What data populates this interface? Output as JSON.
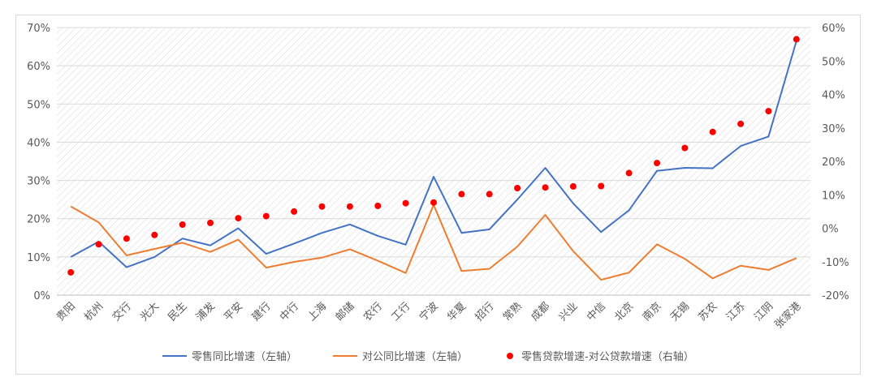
{
  "chart_data": {
    "type": "line",
    "categories": [
      "贵阳",
      "杭州",
      "交行",
      "光大",
      "民生",
      "浦发",
      "平安",
      "建行",
      "中行",
      "上海",
      "邮储",
      "农行",
      "工行",
      "宁波",
      "华夏",
      "招行",
      "常熟",
      "成都",
      "兴业",
      "中信",
      "北京",
      "南京",
      "无锡",
      "苏农",
      "江苏",
      "江阴",
      "张家港"
    ],
    "series": [
      {
        "name": "零售同比增速（左轴）",
        "axis": "left",
        "kind": "line",
        "color": "#4472c4",
        "values": [
          10.0,
          14.0,
          7.3,
          10.0,
          14.8,
          13.0,
          17.5,
          10.8,
          13.5,
          16.3,
          18.5,
          15.5,
          13.2,
          31.0,
          16.3,
          17.2,
          25.0,
          33.3,
          24.0,
          16.5,
          22.2,
          32.5,
          33.3,
          33.2,
          39.0,
          41.5,
          66.5
        ]
      },
      {
        "name": "对公同比增速（左轴）",
        "axis": "left",
        "kind": "line",
        "color": "#ed7d31",
        "values": [
          23.2,
          19.0,
          10.4,
          12.1,
          13.7,
          11.3,
          14.5,
          7.2,
          8.7,
          9.8,
          12.0,
          9.0,
          5.8,
          23.6,
          6.3,
          6.9,
          12.7,
          21.0,
          11.5,
          4.0,
          5.9,
          13.3,
          9.5,
          4.4,
          7.7,
          6.6,
          9.7
        ]
      },
      {
        "name": "零售贷款增速-对公贷款增速（右轴）",
        "axis": "right",
        "kind": "scatter",
        "color": "#ff0000",
        "values": [
          -13.2,
          -4.8,
          -3.1,
          -2.0,
          1.1,
          1.6,
          3.0,
          3.6,
          5.0,
          6.5,
          6.5,
          6.7,
          7.5,
          7.7,
          10.2,
          10.2,
          12.0,
          12.2,
          12.5,
          12.6,
          16.5,
          19.5,
          24.0,
          28.8,
          31.2,
          35.0,
          56.5
        ]
      }
    ],
    "left_axis": {
      "min": 0,
      "max": 70,
      "step": 10,
      "format": "percent"
    },
    "right_axis": {
      "min": -20,
      "max": 60,
      "step": 10,
      "format": "percent"
    },
    "left_tick_labels": [
      "0%",
      "10%",
      "20%",
      "30%",
      "40%",
      "50%",
      "60%",
      "70%"
    ],
    "right_tick_labels": [
      "-20%",
      "-10%",
      "0%",
      "10%",
      "20%",
      "30%",
      "40%",
      "50%",
      "60%"
    ],
    "background_pattern": "diagonal-hatch",
    "legend_position": "bottom"
  }
}
